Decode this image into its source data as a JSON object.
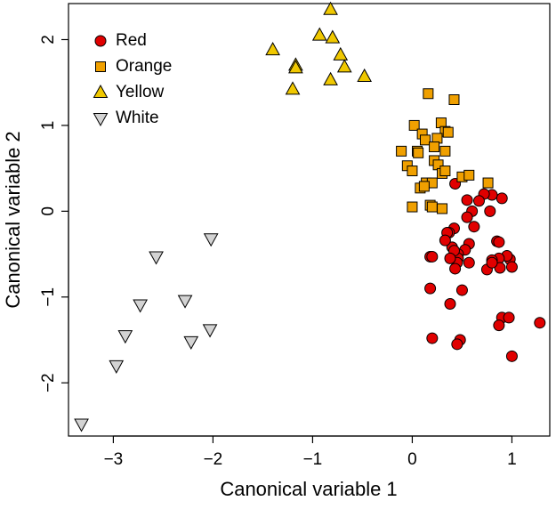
{
  "chart_data": {
    "type": "scatter",
    "xlabel": "Canonical variable 1",
    "ylabel": "Canonical variable 2",
    "xlim": [
      -3.45,
      1.38
    ],
    "ylim": [
      -2.62,
      2.42
    ],
    "xticks": [
      -3,
      -2,
      -1,
      0,
      1
    ],
    "yticks": [
      -2,
      -1,
      0,
      1,
      2
    ],
    "grid": false,
    "legend_position": "top-left",
    "series": [
      {
        "name": "Red",
        "marker": "circle",
        "color": "#e00000",
        "edge": "#000000",
        "points": [
          [
            0.98,
            -0.56
          ],
          [
            0.95,
            -0.52
          ],
          [
            1.0,
            -0.65
          ],
          [
            1.28,
            -1.3
          ],
          [
            0.9,
            -1.24
          ],
          [
            0.97,
            -1.24
          ],
          [
            1.0,
            -1.69
          ],
          [
            0.87,
            -1.33
          ],
          [
            0.87,
            -0.55
          ],
          [
            0.88,
            -0.66
          ],
          [
            0.8,
            -0.57
          ],
          [
            0.75,
            -0.68
          ],
          [
            0.8,
            -0.6
          ],
          [
            0.85,
            -0.35
          ],
          [
            0.87,
            -0.36
          ],
          [
            0.9,
            0.15
          ],
          [
            0.8,
            0.19
          ],
          [
            0.78,
            0.0
          ],
          [
            0.72,
            0.2
          ],
          [
            0.67,
            0.12
          ],
          [
            0.62,
            -0.18
          ],
          [
            0.57,
            -0.6
          ],
          [
            0.57,
            -0.38
          ],
          [
            0.55,
            0.13
          ],
          [
            0.6,
            0.0
          ],
          [
            0.55,
            -0.07
          ],
          [
            0.53,
            -0.45
          ],
          [
            0.5,
            -0.92
          ],
          [
            0.48,
            -1.5
          ],
          [
            0.45,
            -1.55
          ],
          [
            0.42,
            -0.2
          ],
          [
            0.46,
            -0.5
          ],
          [
            0.46,
            -0.55
          ],
          [
            0.45,
            -0.6
          ],
          [
            0.43,
            -0.67
          ],
          [
            0.4,
            -0.42
          ],
          [
            0.42,
            -0.46
          ],
          [
            0.38,
            -0.55
          ],
          [
            0.37,
            -0.25
          ],
          [
            0.35,
            -0.25
          ],
          [
            0.33,
            -0.34
          ],
          [
            0.38,
            -1.08
          ],
          [
            0.18,
            -0.53
          ],
          [
            0.2,
            -0.53
          ],
          [
            0.2,
            -1.48
          ],
          [
            0.18,
            -0.9
          ],
          [
            0.43,
            0.32
          ]
        ]
      },
      {
        "name": "Orange",
        "marker": "square",
        "color": "#f0a000",
        "edge": "#000000",
        "points": [
          [
            0.16,
            1.37
          ],
          [
            0.42,
            1.3
          ],
          [
            0.29,
            1.03
          ],
          [
            0.33,
            0.93
          ],
          [
            0.36,
            0.92
          ],
          [
            0.02,
            1.0
          ],
          [
            0.1,
            0.9
          ],
          [
            0.13,
            0.83
          ],
          [
            0.25,
            0.85
          ],
          [
            0.22,
            0.75
          ],
          [
            0.05,
            0.7
          ],
          [
            0.06,
            0.68
          ],
          [
            0.33,
            0.7
          ],
          [
            0.22,
            0.59
          ],
          [
            0.26,
            0.54
          ],
          [
            -0.11,
            0.7
          ],
          [
            -0.05,
            0.53
          ],
          [
            0.0,
            0.47
          ],
          [
            0.3,
            0.44
          ],
          [
            0.33,
            0.47
          ],
          [
            0.5,
            0.4
          ],
          [
            0.57,
            0.42
          ],
          [
            0.76,
            0.33
          ],
          [
            0.14,
            0.33
          ],
          [
            0.2,
            0.33
          ],
          [
            0.08,
            0.27
          ],
          [
            0.12,
            0.29
          ],
          [
            0.18,
            0.07
          ],
          [
            0.2,
            0.05
          ],
          [
            0.3,
            0.03
          ],
          [
            0.0,
            0.05
          ]
        ]
      },
      {
        "name": "Yellow",
        "marker": "triangle-up",
        "color": "#f0c800",
        "edge": "#000000",
        "points": [
          [
            -0.82,
            2.35
          ],
          [
            -0.93,
            2.05
          ],
          [
            -0.8,
            2.02
          ],
          [
            -0.72,
            1.82
          ],
          [
            -0.68,
            1.68
          ],
          [
            -0.82,
            1.53
          ],
          [
            -0.48,
            1.57
          ],
          [
            -1.4,
            1.88
          ],
          [
            -1.17,
            1.7
          ],
          [
            -1.17,
            1.67
          ],
          [
            -1.2,
            1.42
          ]
        ]
      },
      {
        "name": "White",
        "marker": "triangle-down",
        "color": "#d3d3d3",
        "edge": "#000000",
        "points": [
          [
            -2.02,
            -0.32
          ],
          [
            -2.57,
            -0.53
          ],
          [
            -2.28,
            -1.04
          ],
          [
            -2.73,
            -1.09
          ],
          [
            -2.88,
            -1.45
          ],
          [
            -2.03,
            -1.38
          ],
          [
            -2.22,
            -1.52
          ],
          [
            -2.97,
            -1.8
          ],
          [
            -3.32,
            -2.48
          ]
        ]
      }
    ]
  }
}
